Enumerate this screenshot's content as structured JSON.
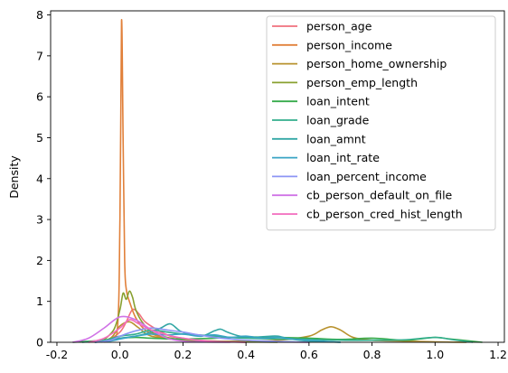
{
  "chart_data": {
    "type": "line",
    "title": "",
    "xlabel": "",
    "ylabel": "Density",
    "xlim": [
      -0.22,
      1.22
    ],
    "ylim": [
      0,
      8.1
    ],
    "xticks": [
      -0.2,
      0.0,
      0.2,
      0.4,
      0.6,
      0.8,
      1.0,
      1.2
    ],
    "xtick_labels": [
      "-0.2",
      "0.0",
      "0.2",
      "0.4",
      "0.6",
      "0.8",
      "1.0",
      "1.2"
    ],
    "yticks": [
      0,
      1,
      2,
      3,
      4,
      5,
      6,
      7,
      8
    ],
    "ytick_labels": [
      "0",
      "1",
      "2",
      "3",
      "4",
      "5",
      "6",
      "7",
      "8"
    ],
    "grid": false,
    "legend_position": "top-right",
    "series": [
      {
        "name": "person_age",
        "color": "#f0717d",
        "x": [
          -0.08,
          -0.04,
          0.0,
          0.02,
          0.04,
          0.06,
          0.08,
          0.12,
          0.16,
          0.2,
          0.25,
          0.3,
          0.4,
          0.5,
          0.6
        ],
        "y": [
          0.0,
          0.05,
          0.25,
          0.5,
          0.8,
          0.7,
          0.5,
          0.3,
          0.15,
          0.1,
          0.05,
          0.03,
          0.02,
          0.01,
          0.0
        ]
      },
      {
        "name": "person_income",
        "color": "#e1803a",
        "x": [
          -0.05,
          -0.01,
          0.0,
          0.005,
          0.01,
          0.015,
          0.02,
          0.03,
          0.05,
          0.08,
          0.12,
          0.16,
          0.2,
          0.3,
          0.4
        ],
        "y": [
          0.0,
          0.2,
          3.0,
          7.85,
          5.0,
          2.0,
          1.3,
          1.0,
          0.6,
          0.3,
          0.15,
          0.08,
          0.05,
          0.02,
          0.0
        ]
      },
      {
        "name": "person_home_ownership",
        "color": "#b8922e",
        "x": [
          -0.08,
          -0.03,
          0.0,
          0.03,
          0.06,
          0.1,
          0.2,
          0.3,
          0.4,
          0.5,
          0.6,
          0.64,
          0.67,
          0.7,
          0.74,
          0.8,
          0.9,
          1.0,
          1.1
        ],
        "y": [
          0.0,
          0.1,
          0.4,
          0.5,
          0.35,
          0.15,
          0.05,
          0.03,
          0.03,
          0.05,
          0.15,
          0.3,
          0.38,
          0.3,
          0.12,
          0.05,
          0.03,
          0.01,
          0.0
        ]
      },
      {
        "name": "person_emp_length",
        "color": "#88a02f",
        "x": [
          -0.06,
          -0.02,
          0.0,
          0.01,
          0.02,
          0.03,
          0.04,
          0.05,
          0.07,
          0.1,
          0.15,
          0.2,
          0.3,
          0.4,
          0.5
        ],
        "y": [
          0.0,
          0.3,
          0.8,
          1.2,
          1.05,
          1.25,
          1.1,
          0.8,
          0.5,
          0.25,
          0.12,
          0.06,
          0.03,
          0.01,
          0.0
        ]
      },
      {
        "name": "loan_intent",
        "color": "#36ab4b",
        "x": [
          -0.15,
          -0.05,
          0.0,
          0.05,
          0.1,
          0.2,
          0.3,
          0.4,
          0.5,
          0.6,
          0.7,
          0.8,
          0.9,
          0.95,
          1.0,
          1.05,
          1.15
        ],
        "y": [
          0.0,
          0.05,
          0.1,
          0.12,
          0.1,
          0.08,
          0.1,
          0.13,
          0.12,
          0.1,
          0.07,
          0.1,
          0.05,
          0.08,
          0.12,
          0.08,
          0.0
        ]
      },
      {
        "name": "loan_grade",
        "color": "#33ae8d",
        "x": [
          -0.12,
          -0.05,
          0.0,
          0.05,
          0.1,
          0.15,
          0.2,
          0.25,
          0.3,
          0.35,
          0.4,
          0.5,
          0.6,
          0.7,
          0.8,
          0.9,
          1.0,
          1.05,
          1.12
        ],
        "y": [
          0.0,
          0.05,
          0.15,
          0.2,
          0.3,
          0.25,
          0.2,
          0.18,
          0.15,
          0.12,
          0.1,
          0.08,
          0.07,
          0.05,
          0.05,
          0.06,
          0.12,
          0.07,
          0.0
        ]
      },
      {
        "name": "loan_amnt",
        "color": "#33a7a5",
        "x": [
          -0.08,
          -0.03,
          0.0,
          0.05,
          0.1,
          0.13,
          0.16,
          0.19,
          0.22,
          0.26,
          0.3,
          0.32,
          0.34,
          0.38,
          0.42,
          0.46,
          0.5,
          0.54,
          0.6,
          0.7
        ],
        "y": [
          0.0,
          0.05,
          0.1,
          0.15,
          0.25,
          0.35,
          0.45,
          0.28,
          0.2,
          0.15,
          0.28,
          0.32,
          0.25,
          0.15,
          0.12,
          0.14,
          0.15,
          0.08,
          0.03,
          0.0
        ]
      },
      {
        "name": "loan_int_rate",
        "color": "#39a4c4",
        "x": [
          -0.08,
          -0.03,
          0.0,
          0.05,
          0.1,
          0.15,
          0.2,
          0.25,
          0.3,
          0.35,
          0.4,
          0.45,
          0.5,
          0.55,
          0.6,
          0.7
        ],
        "y": [
          0.0,
          0.03,
          0.08,
          0.15,
          0.2,
          0.18,
          0.2,
          0.15,
          0.18,
          0.12,
          0.15,
          0.1,
          0.12,
          0.08,
          0.05,
          0.0
        ]
      },
      {
        "name": "loan_percent_income",
        "color": "#8c95f4",
        "x": [
          -0.08,
          -0.03,
          0.0,
          0.05,
          0.1,
          0.15,
          0.2,
          0.25,
          0.3,
          0.35,
          0.4,
          0.5,
          0.6
        ],
        "y": [
          0.0,
          0.05,
          0.15,
          0.28,
          0.35,
          0.3,
          0.25,
          0.18,
          0.12,
          0.08,
          0.05,
          0.02,
          0.0
        ]
      },
      {
        "name": "cb_person_default_on_file",
        "color": "#d073e6",
        "x": [
          -0.15,
          -0.1,
          -0.05,
          0.0,
          0.05,
          0.1,
          0.15,
          0.2,
          0.25,
          0.35
        ],
        "y": [
          0.0,
          0.1,
          0.35,
          0.62,
          0.55,
          0.3,
          0.1,
          0.03,
          0.01,
          0.0
        ]
      },
      {
        "name": "cb_person_cred_hist_length",
        "color": "#f36cbe",
        "x": [
          -0.1,
          -0.05,
          0.0,
          0.03,
          0.06,
          0.1,
          0.15,
          0.2,
          0.25,
          0.3,
          0.4
        ],
        "y": [
          0.0,
          0.1,
          0.35,
          0.55,
          0.45,
          0.3,
          0.18,
          0.1,
          0.05,
          0.02,
          0.0
        ]
      }
    ]
  }
}
